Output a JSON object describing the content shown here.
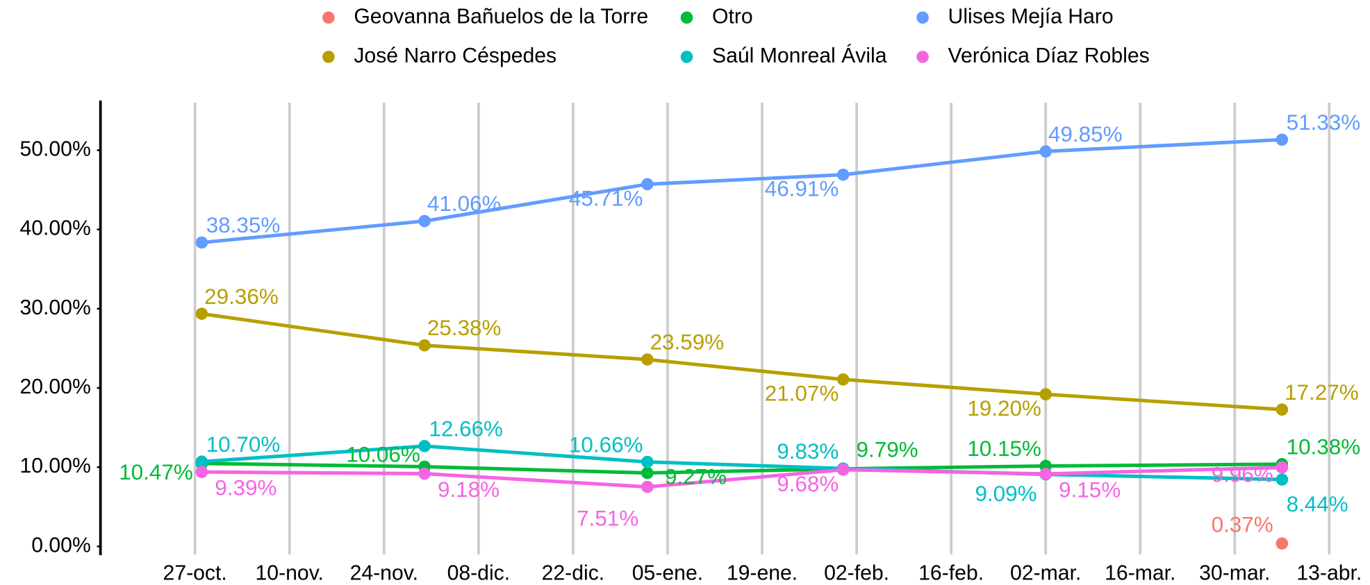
{
  "chart_data": {
    "type": "line",
    "x": [
      "28-oct.",
      "30-nov.",
      "02-ene.",
      "31-ene.",
      "02-mar.",
      "06-abr."
    ],
    "xlim": [
      "13-oct.",
      "18-abr."
    ],
    "xticks": [
      "27-oct.",
      "10-nov.",
      "24-nov.",
      "08-dic.",
      "22-dic.",
      "05-ene.",
      "19-ene.",
      "02-feb.",
      "16-feb.",
      "02-mar.",
      "16-mar.",
      "30-mar.",
      "13-abr."
    ],
    "ylim": [
      -1,
      56
    ],
    "yticks": [
      {
        "value": 0,
        "label": "0.00%"
      },
      {
        "value": 10,
        "label": "10.00%"
      },
      {
        "value": 20,
        "label": "20.00%"
      },
      {
        "value": 30,
        "label": "30.00%"
      },
      {
        "value": 40,
        "label": "40.00%"
      },
      {
        "value": 50,
        "label": "50.00%"
      }
    ],
    "grid": true,
    "legend": "top",
    "series": [
      {
        "name": "Geovanna Bañuelos de la Torre",
        "color": "#F8766D",
        "values": [
          null,
          null,
          null,
          null,
          null,
          0.37
        ],
        "value_labels": [
          null,
          null,
          null,
          null,
          null,
          "0.37%"
        ]
      },
      {
        "name": "José Narro Céspedes",
        "color": "#B79F00",
        "values": [
          29.36,
          25.38,
          23.59,
          21.07,
          19.2,
          17.27
        ],
        "value_labels": [
          "29.36%",
          "25.38%",
          "23.59%",
          "21.07%",
          "19.20%",
          "17.27%"
        ]
      },
      {
        "name": "Otro",
        "color": "#00BA38",
        "values": [
          10.47,
          10.06,
          9.27,
          9.79,
          10.15,
          10.38
        ],
        "value_labels": [
          "10.47%",
          "10.06%",
          "9.27%",
          "9.79%",
          "10.15%",
          "10.38%"
        ]
      },
      {
        "name": "Saúl Monreal Ávila",
        "color": "#00BFC4",
        "values": [
          10.7,
          12.66,
          10.66,
          9.83,
          9.09,
          8.44
        ],
        "value_labels": [
          "10.70%",
          "12.66%",
          "10.66%",
          "9.83%",
          "9.09%",
          "8.44%"
        ]
      },
      {
        "name": "Ulises Mejía Haro",
        "color": "#619CFF",
        "values": [
          38.35,
          41.06,
          45.71,
          46.91,
          49.85,
          51.33
        ],
        "value_labels": [
          "38.35%",
          "41.06%",
          "45.71%",
          "46.91%",
          "49.85%",
          "51.33%"
        ]
      },
      {
        "name": "Verónica Díaz Robles",
        "color": "#F564E3",
        "values": [
          9.39,
          9.18,
          7.51,
          9.68,
          9.15,
          9.96
        ],
        "value_labels": [
          "9.39%",
          "9.18%",
          "7.51%",
          "9.68%",
          "9.15%",
          "9.96%"
        ]
      }
    ]
  }
}
